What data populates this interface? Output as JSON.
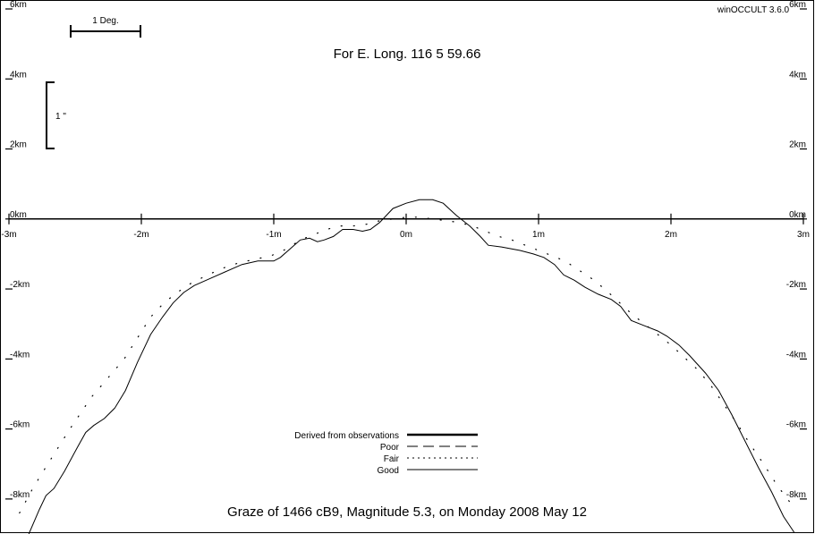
{
  "app": {
    "version": "winOCCULT 3.6.0"
  },
  "header": {
    "longitude": "For E. Long.  116  5 59.66"
  },
  "footer": {
    "title": "Graze of     1466  cB9,  Magnitude   5.3,  on Monday  2008  May  12"
  },
  "scale": {
    "degree_label": "1 Deg.",
    "arcsec_label": "1 \""
  },
  "chart_data": {
    "type": "line",
    "title": "Graze of     1466  cB9,  Magnitude   5.3,  on Monday  2008  May  12",
    "subtitle": "For E. Long.  116  5 59.66",
    "xlim": [
      -3,
      3
    ],
    "ylim": [
      -9,
      6
    ],
    "x_ticks": [
      {
        "v": -3,
        "label": "-3m"
      },
      {
        "v": -2,
        "label": "-2m"
      },
      {
        "v": -1,
        "label": "-1m"
      },
      {
        "v": 0,
        "label": "0m"
      },
      {
        "v": 1,
        "label": "1m"
      },
      {
        "v": 2,
        "label": "2m"
      },
      {
        "v": 3,
        "label": "3m"
      }
    ],
    "y_ticks": [
      {
        "v": 6,
        "label": "6km"
      },
      {
        "v": 4,
        "label": "4km"
      },
      {
        "v": 2,
        "label": "2km"
      },
      {
        "v": 0,
        "label": "0km"
      },
      {
        "v": -2,
        "label": "-2km"
      },
      {
        "v": -4,
        "label": "-4km"
      },
      {
        "v": -6,
        "label": "-6km"
      },
      {
        "v": -8,
        "label": "-8km"
      }
    ],
    "legend": {
      "placement": "bottom-center",
      "entries": [
        {
          "name": "Derived from observations",
          "style": "thick"
        },
        {
          "name": "Poor",
          "style": "dashed"
        },
        {
          "name": "Fair",
          "style": "dotted"
        },
        {
          "name": "Good",
          "style": "solid"
        }
      ]
    },
    "series": [
      {
        "name": "Good",
        "style": "solid",
        "points": [
          [
            -2.85,
            -9.0
          ],
          [
            -2.77,
            -8.3
          ],
          [
            -2.72,
            -7.9
          ],
          [
            -2.66,
            -7.7
          ],
          [
            -2.58,
            -7.2
          ],
          [
            -2.48,
            -6.5
          ],
          [
            -2.42,
            -6.1
          ],
          [
            -2.36,
            -5.9
          ],
          [
            -2.28,
            -5.7
          ],
          [
            -2.2,
            -5.4
          ],
          [
            -2.12,
            -4.9
          ],
          [
            -2.03,
            -4.1
          ],
          [
            -1.93,
            -3.3
          ],
          [
            -1.84,
            -2.8
          ],
          [
            -1.76,
            -2.4
          ],
          [
            -1.68,
            -2.1
          ],
          [
            -1.6,
            -1.9
          ],
          [
            -1.48,
            -1.7
          ],
          [
            -1.36,
            -1.5
          ],
          [
            -1.24,
            -1.3
          ],
          [
            -1.12,
            -1.2
          ],
          [
            -1.0,
            -1.2
          ],
          [
            -0.95,
            -1.1
          ],
          [
            -0.86,
            -0.8
          ],
          [
            -0.8,
            -0.6
          ],
          [
            -0.73,
            -0.55
          ],
          [
            -0.67,
            -0.65
          ],
          [
            -0.62,
            -0.6
          ],
          [
            -0.55,
            -0.5
          ],
          [
            -0.48,
            -0.3
          ],
          [
            -0.4,
            -0.3
          ],
          [
            -0.33,
            -0.35
          ],
          [
            -0.27,
            -0.3
          ],
          [
            -0.2,
            -0.1
          ],
          [
            -0.1,
            0.3
          ],
          [
            0.0,
            0.45
          ],
          [
            0.1,
            0.55
          ],
          [
            0.2,
            0.55
          ],
          [
            0.28,
            0.45
          ],
          [
            0.38,
            0.1
          ],
          [
            0.48,
            -0.2
          ],
          [
            0.56,
            -0.5
          ],
          [
            0.62,
            -0.75
          ],
          [
            0.72,
            -0.8
          ],
          [
            0.86,
            -0.9
          ],
          [
            0.96,
            -1.0
          ],
          [
            1.04,
            -1.1
          ],
          [
            1.12,
            -1.3
          ],
          [
            1.19,
            -1.6
          ],
          [
            1.27,
            -1.75
          ],
          [
            1.35,
            -1.95
          ],
          [
            1.45,
            -2.15
          ],
          [
            1.55,
            -2.3
          ],
          [
            1.62,
            -2.5
          ],
          [
            1.7,
            -2.9
          ],
          [
            1.8,
            -3.05
          ],
          [
            1.9,
            -3.2
          ],
          [
            1.97,
            -3.35
          ],
          [
            2.06,
            -3.6
          ],
          [
            2.14,
            -3.9
          ],
          [
            2.26,
            -4.4
          ],
          [
            2.36,
            -4.9
          ],
          [
            2.46,
            -5.6
          ],
          [
            2.54,
            -6.2
          ],
          [
            2.66,
            -7.1
          ],
          [
            2.76,
            -7.8
          ],
          [
            2.85,
            -8.5
          ],
          [
            2.93,
            -8.95
          ]
        ]
      },
      {
        "name": "Fair",
        "style": "dotted",
        "points": [
          [
            -2.92,
            -8.4
          ],
          [
            -2.82,
            -7.7
          ],
          [
            -2.74,
            -7.2
          ],
          [
            -2.64,
            -6.6
          ],
          [
            -2.54,
            -6.0
          ],
          [
            -2.45,
            -5.5
          ],
          [
            -2.38,
            -5.1
          ],
          [
            -2.31,
            -4.8
          ],
          [
            -2.22,
            -4.4
          ],
          [
            -2.13,
            -4.0
          ],
          [
            -2.03,
            -3.4
          ],
          [
            -1.93,
            -2.8
          ],
          [
            -1.83,
            -2.4
          ],
          [
            -1.73,
            -2.1
          ],
          [
            -1.63,
            -1.85
          ],
          [
            -1.5,
            -1.6
          ],
          [
            -1.38,
            -1.4
          ],
          [
            -1.26,
            -1.25
          ],
          [
            -1.14,
            -1.15
          ],
          [
            -1.02,
            -1.05
          ],
          [
            -0.9,
            -0.85
          ],
          [
            -0.8,
            -0.6
          ],
          [
            -0.7,
            -0.45
          ],
          [
            -0.6,
            -0.3
          ],
          [
            -0.5,
            -0.2
          ],
          [
            -0.4,
            -0.2
          ],
          [
            -0.3,
            -0.15
          ],
          [
            -0.2,
            -0.05
          ],
          [
            -0.1,
            0.0
          ],
          [
            0.0,
            0.05
          ],
          [
            0.1,
            0.05
          ],
          [
            0.2,
            0.0
          ],
          [
            0.3,
            -0.05
          ],
          [
            0.4,
            -0.1
          ],
          [
            0.5,
            -0.2
          ],
          [
            0.6,
            -0.35
          ],
          [
            0.7,
            -0.5
          ],
          [
            0.8,
            -0.6
          ],
          [
            0.9,
            -0.75
          ],
          [
            1.0,
            -0.9
          ],
          [
            1.1,
            -1.05
          ],
          [
            1.2,
            -1.2
          ],
          [
            1.3,
            -1.45
          ],
          [
            1.4,
            -1.7
          ],
          [
            1.5,
            -2.0
          ],
          [
            1.6,
            -2.35
          ],
          [
            1.7,
            -2.7
          ],
          [
            1.8,
            -3.0
          ],
          [
            1.9,
            -3.3
          ],
          [
            2.0,
            -3.6
          ],
          [
            2.1,
            -3.95
          ],
          [
            2.2,
            -4.3
          ],
          [
            2.3,
            -4.75
          ],
          [
            2.4,
            -5.3
          ],
          [
            2.5,
            -5.85
          ],
          [
            2.6,
            -6.45
          ],
          [
            2.7,
            -7.0
          ],
          [
            2.8,
            -7.6
          ],
          [
            2.9,
            -8.1
          ]
        ]
      }
    ]
  }
}
